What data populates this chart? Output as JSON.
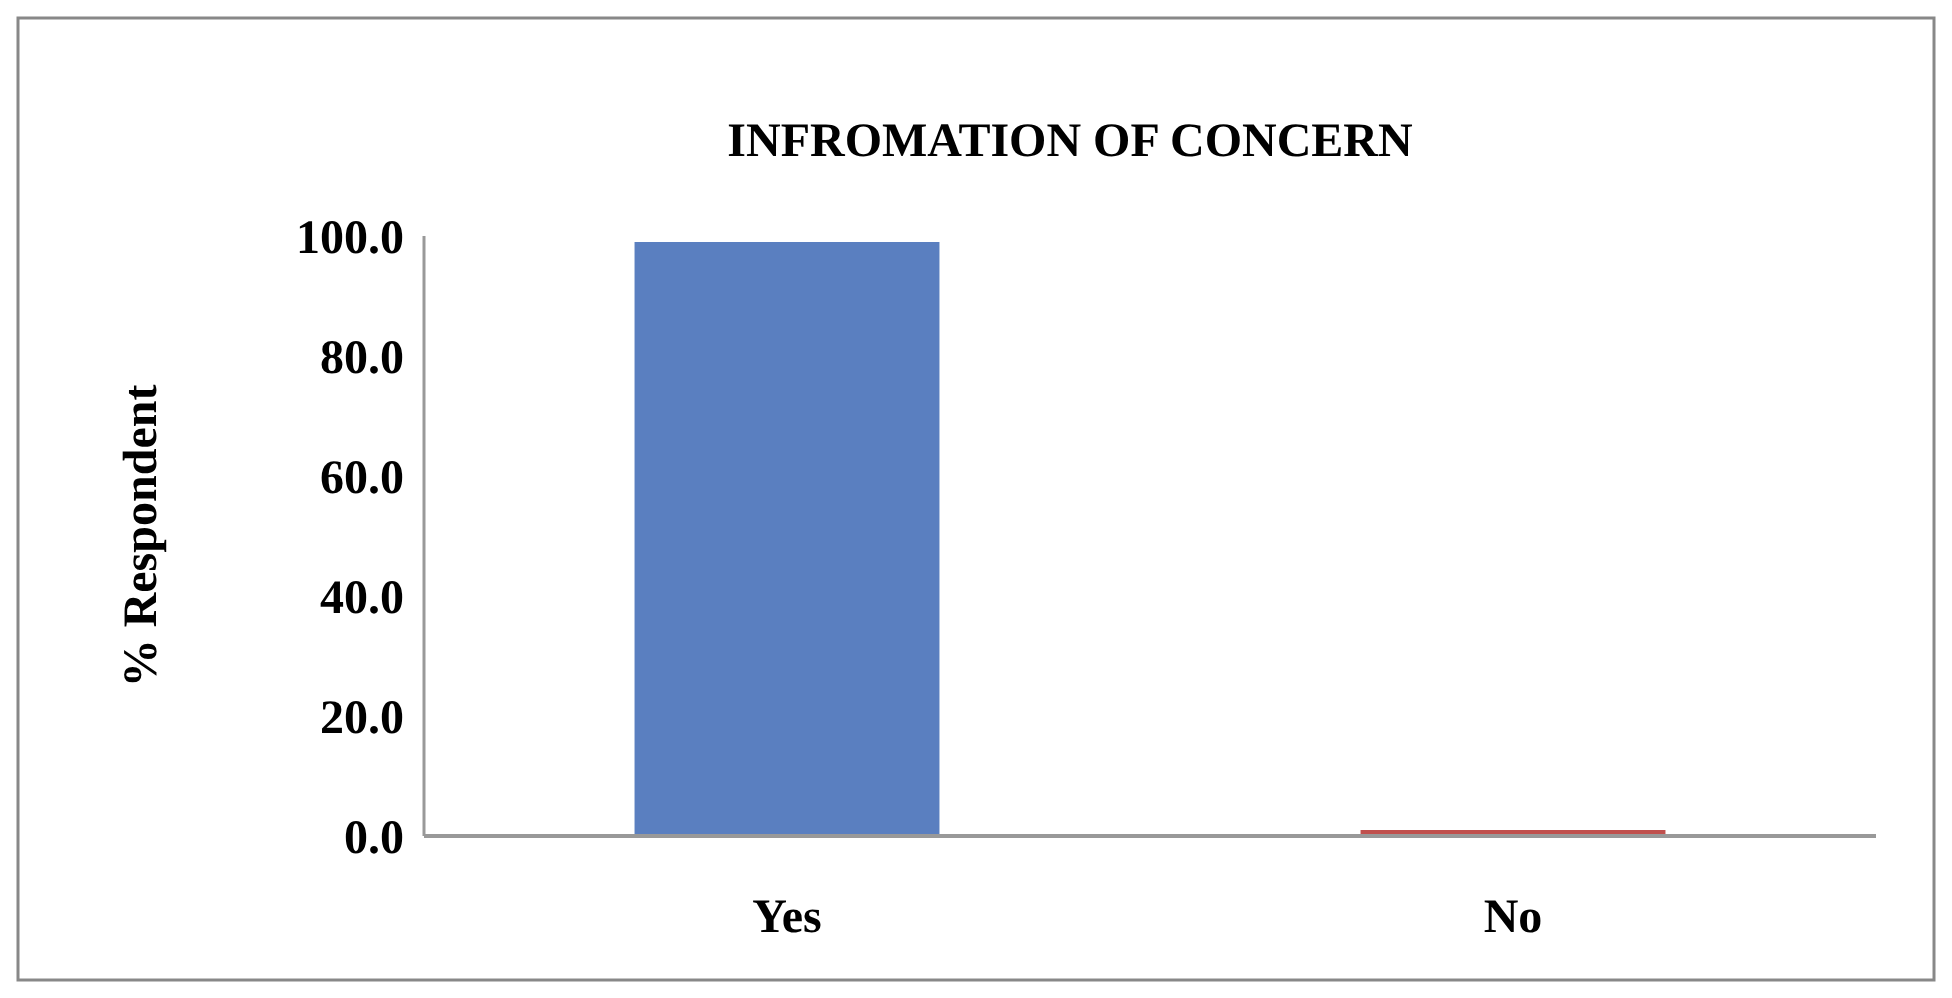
{
  "chart_data": {
    "type": "bar",
    "title": "INFROMATION OF CONCERN",
    "ylabel": "% Respondent",
    "categories": [
      "Yes",
      "No"
    ],
    "values": [
      99.0,
      1.0
    ],
    "colors": [
      "#5a7fc0",
      "#c0504d"
    ],
    "ylim": [
      0,
      100
    ],
    "yticks": [
      {
        "value": 0,
        "label": "0.0"
      },
      {
        "value": 20,
        "label": "20.0"
      },
      {
        "value": 40,
        "label": "40.0"
      },
      {
        "value": 60,
        "label": "60.0"
      },
      {
        "value": 80,
        "label": "80.0"
      },
      {
        "value": 100,
        "label": "100.0"
      }
    ],
    "grid": false
  }
}
